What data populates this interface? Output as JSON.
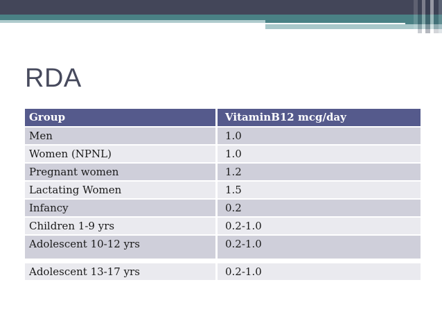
{
  "slide": {
    "title": "RDA",
    "colors": {
      "top_bar": "#434659",
      "teal_bar": "#4a8185",
      "light_teal_bar": "#afcbcd",
      "table_header_bg": "#555a8c",
      "row_odd_bg": "#cfcfda",
      "row_even_bg": "#eaeaef",
      "title_color": "#474a5d",
      "body_text": "#1a1a1a"
    },
    "table": {
      "columns": [
        "Group",
        "VitaminB12 mcg/day"
      ],
      "rows": [
        {
          "group": "Men",
          "value": "1.0"
        },
        {
          "group": "Women (NPNL)",
          "value": "1.0"
        },
        {
          "group": "Pregnant women",
          "value": "1.2"
        },
        {
          "group": "Lactating Women",
          "value": "1.5"
        },
        {
          "group": "Infancy",
          "value": "0.2"
        },
        {
          "group": "Children 1-9 yrs",
          "value": "0.2-1.0"
        },
        {
          "group": "Adolescent 10-12 yrs",
          "value": "0.2-1.0"
        },
        {
          "group": "Adolescent 13-17 yrs",
          "value": "0.2-1.0"
        }
      ]
    }
  },
  "chart_data": {
    "type": "table",
    "title": "RDA",
    "columns": [
      "Group",
      "VitaminB12 mcg/day"
    ],
    "rows": [
      [
        "Men",
        "1.0"
      ],
      [
        "Women (NPNL)",
        "1.0"
      ],
      [
        "Pregnant women",
        "1.2"
      ],
      [
        "Lactating Women",
        "1.5"
      ],
      [
        "Infancy",
        "0.2"
      ],
      [
        "Children 1-9 yrs",
        "0.2-1.0"
      ],
      [
        "Adolescent 10-12 yrs",
        "0.2-1.0"
      ],
      [
        "Adolescent 13-17 yrs",
        "0.2-1.0"
      ]
    ]
  }
}
